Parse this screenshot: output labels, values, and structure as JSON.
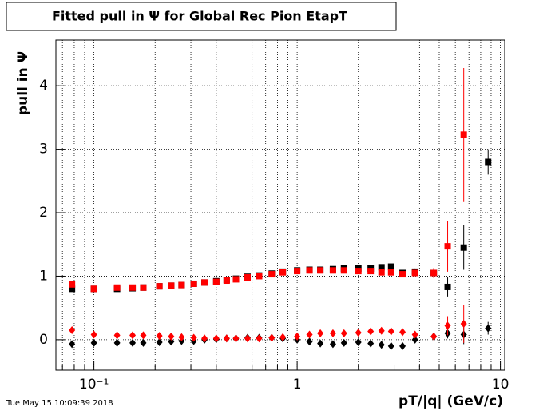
{
  "chart_data": {
    "type": "scatter",
    "title": "Fitted pull in Ψ for Global Rec Pion EtapT",
    "y_label": "pull in Ψ",
    "x_label": "pT/|q| (GeV/c)",
    "timestamp": "Tue May 15 10:09:39 2018",
    "log_x": true,
    "grid": true,
    "xlim": [
      0.065,
      10.5
    ],
    "ylim": [
      -0.48,
      4.72
    ],
    "xticks": [
      {
        "value": 0.1,
        "label": "10⁻¹"
      },
      1,
      10
    ],
    "yticks": [
      0,
      1,
      2,
      3,
      4
    ],
    "x": [
      0.078,
      0.1,
      0.13,
      0.155,
      0.175,
      0.21,
      0.24,
      0.27,
      0.31,
      0.35,
      0.4,
      0.45,
      0.5,
      0.57,
      0.65,
      0.75,
      0.85,
      1.0,
      1.15,
      1.3,
      1.5,
      1.7,
      2.0,
      2.3,
      2.6,
      2.9,
      3.3,
      3.8,
      4.7,
      5.5,
      6.6,
      8.7
    ],
    "series": [
      {
        "name": "black squares",
        "color": "#000000",
        "marker": "square",
        "values": [
          0.8,
          0.8,
          0.8,
          0.81,
          0.82,
          0.84,
          0.85,
          0.86,
          0.88,
          0.9,
          0.92,
          0.94,
          0.96,
          0.99,
          1.01,
          1.04,
          1.07,
          1.09,
          1.1,
          1.1,
          1.11,
          1.12,
          1.12,
          1.12,
          1.14,
          1.15,
          1.05,
          1.07,
          1.05,
          0.83,
          1.45,
          2.8
        ],
        "errors": [
          0.01,
          0.01,
          0.01,
          0.01,
          0.01,
          0.01,
          0.01,
          0.01,
          0.01,
          0.01,
          0.01,
          0.01,
          0.01,
          0.01,
          0.01,
          0.01,
          0.01,
          0.01,
          0.01,
          0.01,
          0.01,
          0.01,
          0.01,
          0.02,
          0.02,
          0.03,
          0.04,
          0.05,
          0.06,
          0.15,
          0.35,
          0.2
        ]
      },
      {
        "name": "red squares",
        "color": "#ff0000",
        "marker": "square",
        "values": [
          0.87,
          0.8,
          0.82,
          0.82,
          0.82,
          0.84,
          0.85,
          0.86,
          0.88,
          0.9,
          0.91,
          0.93,
          0.95,
          0.98,
          1.0,
          1.03,
          1.06,
          1.08,
          1.09,
          1.09,
          1.09,
          1.09,
          1.08,
          1.08,
          1.06,
          1.06,
          1.03,
          1.05,
          1.05,
          1.47,
          3.23,
          null
        ],
        "errors": [
          0.01,
          0.01,
          0.01,
          0.01,
          0.01,
          0.01,
          0.01,
          0.01,
          0.01,
          0.01,
          0.01,
          0.01,
          0.01,
          0.01,
          0.01,
          0.01,
          0.01,
          0.01,
          0.01,
          0.01,
          0.01,
          0.01,
          0.01,
          0.02,
          0.02,
          0.03,
          0.04,
          0.05,
          0.08,
          0.4,
          1.05,
          null
        ]
      },
      {
        "name": "black diamonds",
        "color": "#000000",
        "marker": "diamond",
        "values": [
          -0.07,
          -0.05,
          -0.05,
          -0.05,
          -0.05,
          -0.04,
          -0.03,
          -0.02,
          -0.02,
          0.0,
          0.01,
          0.02,
          0.02,
          0.03,
          0.03,
          0.03,
          0.02,
          0.0,
          -0.03,
          -0.06,
          -0.07,
          -0.05,
          -0.04,
          -0.06,
          -0.08,
          -0.1,
          -0.1,
          0.0,
          0.05,
          0.1,
          0.08,
          0.18
        ],
        "errors": [
          0.01,
          0.01,
          0.01,
          0.01,
          0.01,
          0.01,
          0.01,
          0.01,
          0.01,
          0.01,
          0.01,
          0.01,
          0.01,
          0.01,
          0.01,
          0.01,
          0.01,
          0.01,
          0.01,
          0.01,
          0.01,
          0.01,
          0.01,
          0.01,
          0.01,
          0.02,
          0.02,
          0.03,
          0.04,
          0.08,
          0.15,
          0.1
        ]
      },
      {
        "name": "red diamonds",
        "color": "#ff0000",
        "marker": "diamond",
        "values": [
          0.15,
          0.08,
          0.07,
          0.07,
          0.07,
          0.06,
          0.05,
          0.04,
          0.03,
          0.02,
          0.02,
          0.02,
          0.02,
          0.02,
          0.02,
          0.03,
          0.04,
          0.05,
          0.08,
          0.1,
          0.1,
          0.1,
          0.11,
          0.13,
          0.14,
          0.13,
          0.12,
          0.08,
          0.05,
          0.22,
          0.25,
          null
        ],
        "errors": [
          0.01,
          0.01,
          0.01,
          0.01,
          0.01,
          0.01,
          0.01,
          0.01,
          0.01,
          0.01,
          0.01,
          0.01,
          0.01,
          0.01,
          0.01,
          0.01,
          0.01,
          0.01,
          0.01,
          0.01,
          0.01,
          0.01,
          0.01,
          0.01,
          0.02,
          0.02,
          0.03,
          0.04,
          0.05,
          0.15,
          0.3,
          null
        ]
      }
    ]
  }
}
